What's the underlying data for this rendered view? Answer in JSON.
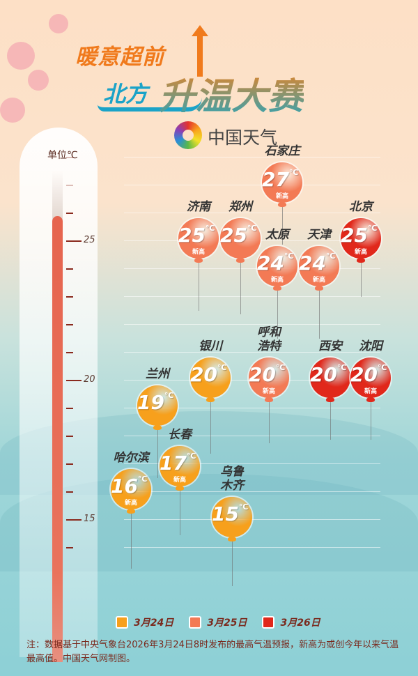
{
  "header": {
    "line1": "暖意超前",
    "line2a": "北方",
    "line2b": "升温大赛",
    "brand": "中国天气"
  },
  "colors": {
    "2026-03-24": "#f7a01c",
    "2026-03-25": "#f37a55",
    "2026-03-26": "#e1281b"
  },
  "chart_data": {
    "type": "scatter",
    "ylabel": "单位℃",
    "ylim": [
      13.5,
      29
    ],
    "yticks": [
      15,
      20,
      25
    ],
    "unit": "℃",
    "new_high_label": "新高",
    "legend": [
      {
        "date": "2026-03-24",
        "label": "3月24日"
      },
      {
        "date": "2026-03-25",
        "label": "3月25日"
      },
      {
        "date": "2026-03-26",
        "label": "3月26日"
      }
    ],
    "points": [
      {
        "city": "石家庄",
        "temp": 27,
        "date": "2026-03-25",
        "new_high": true
      },
      {
        "city": "济南",
        "temp": 25,
        "date": "2026-03-25",
        "new_high": true
      },
      {
        "city": "郑州",
        "temp": 25,
        "date": "2026-03-25",
        "new_high": false
      },
      {
        "city": "太原",
        "temp": 24,
        "date": "2026-03-25",
        "new_high": true
      },
      {
        "city": "天津",
        "temp": 24,
        "date": "2026-03-25",
        "new_high": true
      },
      {
        "city": "北京",
        "temp": 25,
        "date": "2026-03-26",
        "new_high": true
      },
      {
        "city": "银川",
        "temp": 20,
        "date": "2026-03-24",
        "new_high": false
      },
      {
        "city": "呼和浩特",
        "temp": 20,
        "date": "2026-03-25",
        "new_high": true
      },
      {
        "city": "西安",
        "temp": 20,
        "date": "2026-03-26",
        "new_high": false
      },
      {
        "city": "沈阳",
        "temp": 20,
        "date": "2026-03-26",
        "new_high": true
      },
      {
        "city": "兰州",
        "temp": 19,
        "date": "2026-03-24",
        "new_high": false
      },
      {
        "city": "长春",
        "temp": 17,
        "date": "2026-03-24",
        "new_high": true
      },
      {
        "city": "哈尔滨",
        "temp": 16,
        "date": "2026-03-24",
        "new_high": true
      },
      {
        "city": "乌鲁木齐",
        "temp": 15,
        "date": "2026-03-24",
        "new_high": false
      }
    ]
  },
  "note": "注：数据基于中央气象台2026年3月24日8时发布的最高气温预报，新高为或创今年以来气温最高值。中国天气网制图。"
}
